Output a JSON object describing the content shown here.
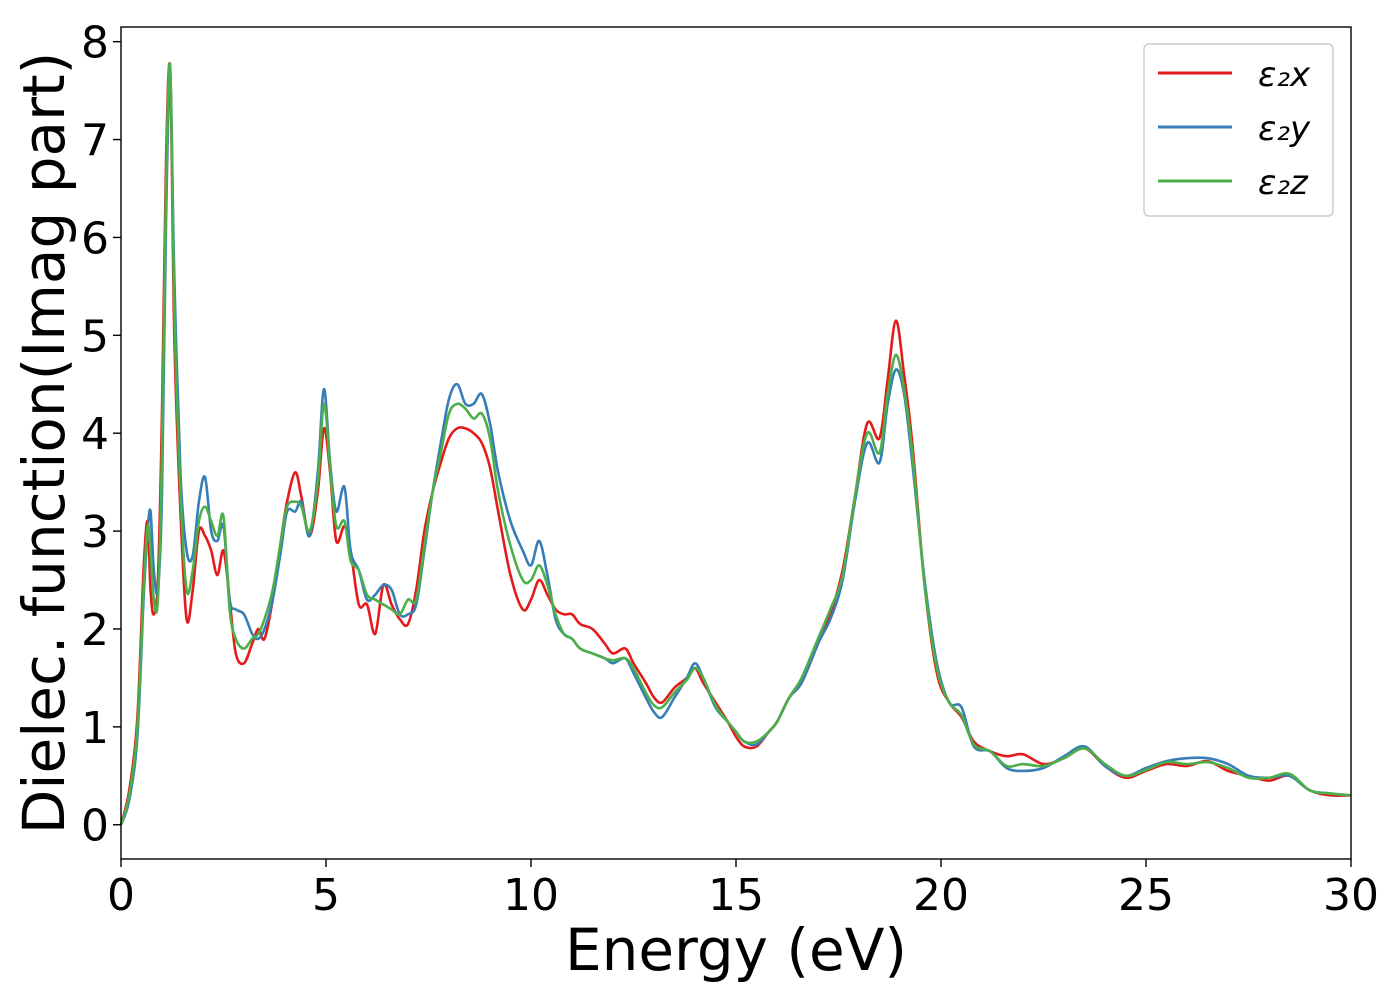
{
  "chart_data": {
    "type": "line",
    "title": "",
    "xlabel": "Energy (eV)",
    "ylabel": "Dielec. function(Imag part)",
    "xlim": [
      0,
      30
    ],
    "ylim": [
      -0.35,
      8.15
    ],
    "xticks": [
      0,
      5,
      10,
      15,
      20,
      25,
      30
    ],
    "yticks": [
      0,
      1,
      2,
      3,
      4,
      5,
      6,
      7,
      8
    ],
    "grid": false,
    "legend_position": "top-right",
    "x": [
      0,
      0.2,
      0.4,
      0.55,
      0.65,
      0.72,
      0.8,
      0.9,
      1.0,
      1.1,
      1.2,
      1.3,
      1.45,
      1.6,
      1.75,
      1.9,
      2.05,
      2.2,
      2.35,
      2.5,
      2.65,
      2.8,
      3.0,
      3.2,
      3.35,
      3.5,
      3.7,
      3.9,
      4.05,
      4.25,
      4.4,
      4.6,
      4.8,
      4.95,
      5.1,
      5.25,
      5.45,
      5.6,
      5.8,
      6.0,
      6.2,
      6.4,
      6.6,
      6.8,
      7.0,
      7.2,
      7.4,
      7.6,
      7.8,
      8.0,
      8.2,
      8.4,
      8.6,
      8.8,
      9.0,
      9.2,
      9.5,
      9.8,
      10.0,
      10.2,
      10.4,
      10.6,
      10.8,
      11.0,
      11.2,
      11.5,
      11.8,
      12.0,
      12.3,
      12.5,
      12.8,
      13.0,
      13.2,
      13.5,
      13.8,
      14.0,
      14.2,
      14.5,
      14.8,
      15.0,
      15.2,
      15.5,
      15.8,
      16.0,
      16.3,
      16.6,
      17.0,
      17.3,
      17.6,
      17.9,
      18.2,
      18.5,
      18.7,
      18.9,
      19.1,
      19.3,
      19.6,
      19.9,
      20.2,
      20.5,
      20.8,
      21.2,
      21.6,
      22.0,
      22.5,
      23.0,
      23.5,
      24.0,
      24.5,
      25.0,
      25.5,
      26.0,
      26.5,
      27.0,
      27.5,
      28.0,
      28.5,
      29.0,
      29.5,
      30.0
    ],
    "series": [
      {
        "name": "ε₂x",
        "color": "#e41a1c",
        "values": [
          0,
          0.35,
          1.1,
          2.6,
          3.1,
          2.4,
          2.15,
          2.5,
          4.2,
          6.8,
          7.7,
          5.0,
          3.2,
          2.1,
          2.4,
          3.0,
          2.95,
          2.8,
          2.55,
          2.8,
          2.3,
          1.75,
          1.65,
          1.85,
          2.0,
          1.9,
          2.3,
          2.9,
          3.3,
          3.6,
          3.35,
          2.95,
          3.4,
          4.05,
          3.6,
          2.9,
          3.05,
          2.8,
          2.25,
          2.25,
          1.95,
          2.45,
          2.25,
          2.1,
          2.05,
          2.4,
          3.0,
          3.4,
          3.7,
          3.95,
          4.05,
          4.05,
          4.0,
          3.9,
          3.65,
          3.2,
          2.55,
          2.2,
          2.3,
          2.5,
          2.35,
          2.2,
          2.15,
          2.15,
          2.05,
          2.0,
          1.85,
          1.75,
          1.8,
          1.65,
          1.45,
          1.3,
          1.25,
          1.4,
          1.5,
          1.6,
          1.45,
          1.25,
          1.05,
          0.9,
          0.8,
          0.8,
          0.95,
          1.05,
          1.3,
          1.45,
          1.85,
          2.15,
          2.6,
          3.35,
          4.1,
          3.95,
          4.55,
          5.15,
          4.6,
          3.9,
          2.45,
          1.55,
          1.25,
          1.1,
          0.85,
          0.75,
          0.7,
          0.72,
          0.62,
          0.68,
          0.78,
          0.6,
          0.48,
          0.55,
          0.62,
          0.6,
          0.65,
          0.55,
          0.5,
          0.45,
          0.5,
          0.35,
          0.3,
          0.3
        ]
      },
      {
        "name": "ε₂y",
        "color": "#377eb8",
        "values": [
          0,
          0.25,
          0.9,
          2.3,
          3.0,
          3.2,
          2.6,
          2.4,
          3.4,
          6.2,
          7.65,
          5.6,
          3.6,
          2.8,
          2.75,
          3.3,
          3.55,
          3.0,
          2.9,
          3.05,
          2.3,
          2.2,
          2.15,
          1.95,
          1.9,
          2.0,
          2.3,
          2.8,
          3.2,
          3.2,
          3.3,
          2.95,
          3.6,
          4.45,
          3.7,
          3.2,
          3.45,
          2.8,
          2.6,
          2.3,
          2.35,
          2.45,
          2.4,
          2.15,
          2.15,
          2.25,
          2.8,
          3.4,
          3.9,
          4.35,
          4.5,
          4.3,
          4.3,
          4.4,
          4.1,
          3.6,
          3.1,
          2.8,
          2.65,
          2.9,
          2.55,
          2.1,
          1.95,
          1.9,
          1.8,
          1.75,
          1.7,
          1.65,
          1.7,
          1.55,
          1.3,
          1.15,
          1.1,
          1.3,
          1.5,
          1.65,
          1.5,
          1.2,
          1.05,
          0.95,
          0.85,
          0.82,
          0.95,
          1.05,
          1.3,
          1.45,
          1.85,
          2.1,
          2.5,
          3.3,
          3.9,
          3.7,
          4.3,
          4.65,
          4.4,
          3.7,
          2.5,
          1.65,
          1.25,
          1.2,
          0.8,
          0.75,
          0.58,
          0.55,
          0.58,
          0.7,
          0.8,
          0.6,
          0.5,
          0.58,
          0.65,
          0.68,
          0.68,
          0.62,
          0.5,
          0.48,
          0.5,
          0.35,
          0.32,
          0.3
        ]
      },
      {
        "name": "ε₂z",
        "color": "#4daf4a",
        "values": [
          0,
          0.3,
          1.0,
          2.4,
          3.05,
          2.8,
          2.3,
          2.3,
          3.8,
          6.5,
          7.75,
          5.3,
          3.4,
          2.4,
          2.6,
          3.1,
          3.25,
          3.1,
          2.95,
          3.15,
          2.2,
          1.9,
          1.8,
          1.9,
          1.95,
          2.1,
          2.4,
          2.9,
          3.25,
          3.3,
          3.25,
          3.0,
          3.5,
          4.3,
          3.65,
          3.05,
          3.1,
          2.7,
          2.6,
          2.35,
          2.3,
          2.25,
          2.2,
          2.15,
          2.3,
          2.3,
          2.85,
          3.4,
          3.8,
          4.2,
          4.3,
          4.25,
          4.15,
          4.2,
          3.95,
          3.4,
          2.85,
          2.5,
          2.5,
          2.65,
          2.45,
          2.15,
          1.95,
          1.9,
          1.8,
          1.75,
          1.7,
          1.68,
          1.7,
          1.6,
          1.35,
          1.22,
          1.2,
          1.35,
          1.48,
          1.6,
          1.5,
          1.22,
          1.05,
          0.95,
          0.85,
          0.85,
          0.95,
          1.05,
          1.3,
          1.5,
          1.9,
          2.2,
          2.55,
          3.35,
          4.0,
          3.8,
          4.4,
          4.8,
          4.45,
          3.8,
          2.45,
          1.6,
          1.25,
          1.12,
          0.82,
          0.75,
          0.6,
          0.62,
          0.6,
          0.68,
          0.78,
          0.62,
          0.5,
          0.56,
          0.64,
          0.62,
          0.64,
          0.58,
          0.48,
          0.48,
          0.52,
          0.35,
          0.32,
          0.3
        ]
      }
    ]
  }
}
